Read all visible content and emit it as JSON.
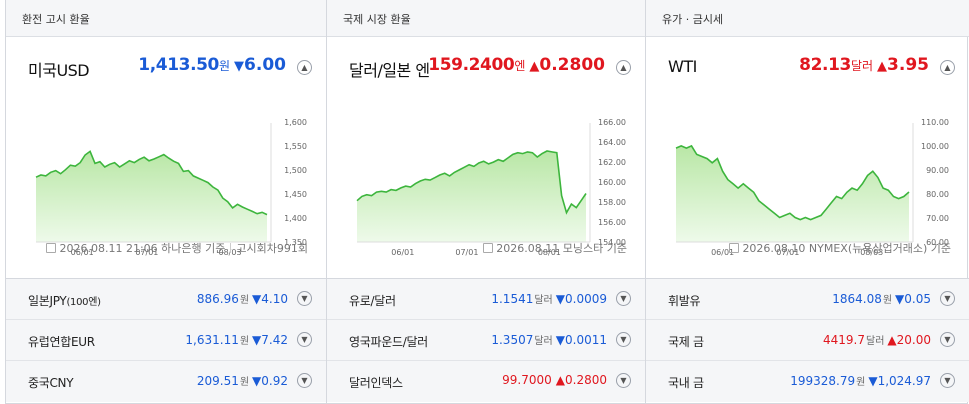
{
  "columns": [
    {
      "header": "환전 고시 환율",
      "main": {
        "title": "미국USD",
        "price": "1,413.50",
        "unit": "원",
        "arrow": "▼",
        "change": "6.00",
        "dir": "down"
      },
      "axis": {
        "ticks": [
          "1,600",
          "1,550",
          "1,500",
          "1,450",
          "1,400",
          "1,350"
        ],
        "xticks": [
          "06/01",
          "07/01",
          "08/03"
        ]
      },
      "footer": {
        "date": "2026.08.11 21:06 하나은행 기준",
        "extra": "고시회차991회"
      },
      "rows": [
        {
          "label": "일본JPY",
          "label_small": "(100엔)",
          "value": "886.96",
          "unit": "원",
          "arrow": "▼",
          "change": "4.10",
          "dir": "down"
        },
        {
          "label": "유럽연합EUR",
          "label_small": "",
          "value": "1,631.11",
          "unit": "원",
          "arrow": "▼",
          "change": "7.42",
          "dir": "down"
        },
        {
          "label": "중국CNY",
          "label_small": "",
          "value": "209.51",
          "unit": "원",
          "arrow": "▼",
          "change": "0.92",
          "dir": "down"
        }
      ]
    },
    {
      "header": "국제 시장 환율",
      "main": {
        "title": "달러/일본 엔",
        "price": "159.2400",
        "unit": "엔",
        "arrow": "▲",
        "change": "0.2800",
        "dir": "up"
      },
      "axis": {
        "ticks": [
          "166.00",
          "164.00",
          "162.00",
          "160.00",
          "158.00",
          "156.00",
          "154.00"
        ],
        "xticks": [
          "06/01",
          "07/01",
          "08/01"
        ]
      },
      "footer": {
        "date": "2026.08.11 모닝스타 기준",
        "extra": ""
      },
      "rows": [
        {
          "label": "유로/달러",
          "label_small": "",
          "value": "1.1541",
          "unit": "달러",
          "arrow": "▼",
          "change": "0.0009",
          "dir": "down"
        },
        {
          "label": "영국파운드/달러",
          "label_small": "",
          "value": "1.3507",
          "unit": "달러",
          "arrow": "▼",
          "change": "0.0011",
          "dir": "down"
        },
        {
          "label": "달러인덱스",
          "label_small": "",
          "value": "99.7000",
          "unit": "",
          "arrow": "▲",
          "change": "0.2800",
          "dir": "up"
        }
      ]
    },
    {
      "header": "유가 · 금시세",
      "main": {
        "title": "WTI",
        "price": "82.13",
        "unit": "달러",
        "arrow": "▲",
        "change": "3.95",
        "dir": "up"
      },
      "axis": {
        "ticks": [
          "110.00",
          "100.00",
          "90.00",
          "80.00",
          "70.00",
          "60.00"
        ],
        "xticks": [
          "06/01",
          "07/01",
          "08/03"
        ]
      },
      "footer": {
        "date": "2026.08.10 NYMEX(뉴욕상업거래소) 기준",
        "extra": ""
      },
      "rows": [
        {
          "label": "휘발유",
          "label_small": "",
          "value": "1864.08",
          "unit": "원",
          "arrow": "▼",
          "change": "0.05",
          "dir": "down"
        },
        {
          "label": "국제 금",
          "label_small": "",
          "value": "4419.7",
          "unit": "달러",
          "arrow": "▲",
          "change": "20.00",
          "dir": "up"
        },
        {
          "label": "국내 금",
          "label_small": "",
          "value": "199328.79",
          "unit": "원",
          "arrow": "▼",
          "change": "1,024.97",
          "dir": "down"
        }
      ]
    }
  ],
  "chart_data": [
    {
      "type": "area",
      "series": [
        {
          "values": [
            1497,
            1502,
            1500,
            1508,
            1512,
            1505,
            1514,
            1524,
            1522,
            1530,
            1547,
            1555,
            1528,
            1532,
            1520,
            1526,
            1530,
            1520,
            1527,
            1534,
            1530,
            1537,
            1542,
            1534,
            1538,
            1543,
            1548,
            1540,
            1533,
            1528,
            1510,
            1512,
            1500,
            1495,
            1490,
            1485,
            1475,
            1468,
            1450,
            1442,
            1428,
            1436,
            1430,
            1425,
            1420,
            1415,
            1418,
            1413
          ]
        }
      ],
      "ylim": [
        1340,
        1610
      ],
      "color": "#3db53d"
    },
    {
      "type": "area",
      "series": [
        {
          "values": [
            158.4,
            158.9,
            159.1,
            159.0,
            159.4,
            159.5,
            159.4,
            159.7,
            159.6,
            159.9,
            160.1,
            160.0,
            160.4,
            160.7,
            160.9,
            160.8,
            161.1,
            161.4,
            161.6,
            161.3,
            161.7,
            162.0,
            162.3,
            162.6,
            162.4,
            162.8,
            163.0,
            162.7,
            162.9,
            163.2,
            163.0,
            163.4,
            163.8,
            164.0,
            163.9,
            164.1,
            164.0,
            163.5,
            163.9,
            164.2,
            164.1,
            164.0,
            159.0,
            157.0,
            158.0,
            157.6,
            158.4,
            159.24
          ]
        }
      ],
      "ylim": [
        153.0,
        167.0
      ],
      "color": "#3db53d"
    },
    {
      "type": "area",
      "series": [
        {
          "values": [
            103,
            104,
            103,
            104,
            100,
            99,
            98,
            96,
            98,
            92,
            88,
            86,
            84,
            86,
            84,
            82,
            78,
            76,
            74,
            72,
            70,
            71,
            72,
            70,
            69,
            70,
            69,
            70,
            71,
            74,
            77,
            80,
            79,
            82,
            84,
            83,
            86,
            90,
            92,
            89,
            84,
            83,
            80,
            79,
            80,
            82.13
          ]
        }
      ],
      "ylim": [
        56,
        113
      ],
      "color": "#3db53d"
    }
  ]
}
